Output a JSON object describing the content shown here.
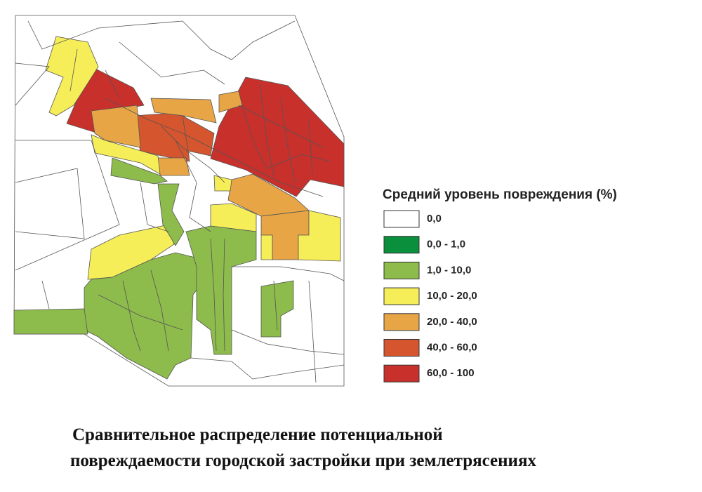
{
  "legend": {
    "title": "Средний уровень повреждения (%)",
    "items": [
      {
        "label": "0,0",
        "color": "#ffffff"
      },
      {
        "label": "0,0 - 1,0",
        "color": "#0a8f3c"
      },
      {
        "label": "1,0 - 10,0",
        "color": "#8dbb4c"
      },
      {
        "label": "10,0 - 20,0",
        "color": "#f6ee58"
      },
      {
        "label": "20,0 - 40,0",
        "color": "#e8a545"
      },
      {
        "label": "40,0 - 60,0",
        "color": "#d4552e"
      },
      {
        "label": "60,0 - 100",
        "color": "#c8302c"
      }
    ]
  },
  "caption": {
    "lines": [
      "Сравнительное распределение потенциальной",
      "повреждаемости городской застройки при землетрясениях"
    ]
  }
}
